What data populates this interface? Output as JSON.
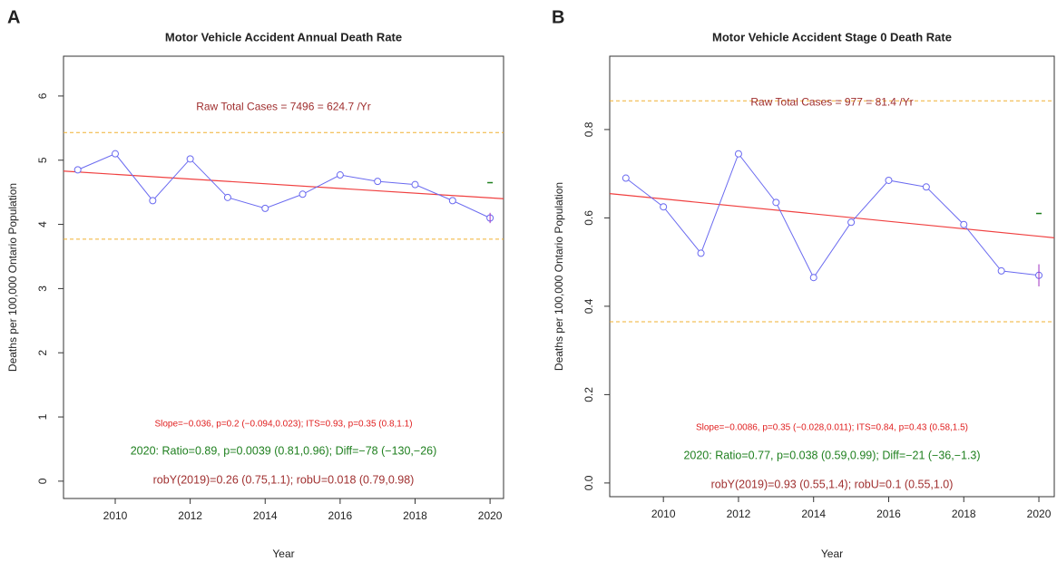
{
  "chart_data": [
    {
      "type": "line",
      "panel_label": "A",
      "title": "Motor Vehicle Accident Annual Death Rate",
      "xlabel": "Year",
      "ylabel": "Deaths per 100,000 Ontario Population",
      "x": [
        2009,
        2010,
        2011,
        2012,
        2013,
        2014,
        2015,
        2016,
        2017,
        2018,
        2019,
        2020
      ],
      "values": [
        4.85,
        5.1,
        4.37,
        5.02,
        4.42,
        4.25,
        4.47,
        4.77,
        4.67,
        4.62,
        4.37,
        4.1
      ],
      "color": "#6a6af0",
      "xlim": [
        2008.62,
        2020.36
      ],
      "ylim": [
        -0.27,
        6.62
      ],
      "xticks": [
        2010,
        2012,
        2014,
        2016,
        2018,
        2020
      ],
      "yticks": [
        0,
        1,
        2,
        3,
        4,
        5,
        6
      ],
      "upper_limit": 5.43,
      "lower_limit": 3.77,
      "trend": [
        4.83,
        4.4
      ],
      "trend_color": "#f04040",
      "expected_2020": 4.65,
      "last_error": 0.08,
      "annotations": {
        "top": "Raw Total Cases = 7496 = 624.7 /Yr",
        "slope": "Slope=−0.036, p=0.2 (−0.094,0.023);  ITS=0.93, p=0.35 (0.8,1.1)",
        "ratio": "2020:  Ratio=0.89, p=0.0039 (0.81,0.96);  Diff=−78 (−130,−26)",
        "rob": "robY(2019)=0.26 (0.75,1.1); robU=0.018 (0.79,0.98)"
      }
    },
    {
      "type": "line",
      "panel_label": "B",
      "title": "Motor Vehicle Accident Stage 0 Death Rate",
      "xlabel": "Year",
      "ylabel": "Deaths per 100,000 Ontario Population",
      "x": [
        2009,
        2010,
        2011,
        2012,
        2013,
        2014,
        2015,
        2016,
        2017,
        2018,
        2019,
        2020
      ],
      "values": [
        0.69,
        0.625,
        0.52,
        0.745,
        0.635,
        0.465,
        0.59,
        0.685,
        0.67,
        0.585,
        0.48,
        0.47
      ],
      "color": "#6a6af0",
      "xlim": [
        2008.57,
        2020.41
      ],
      "ylim": [
        -0.031,
        0.966
      ],
      "xticks": [
        2010,
        2012,
        2014,
        2016,
        2018,
        2020
      ],
      "yticks": [
        {
          "value": 0,
          "label": "0.0"
        },
        0.2,
        0.4,
        0.6,
        0.8
      ],
      "upper_limit": 0.865,
      "lower_limit": 0.365,
      "trend": [
        0.655,
        0.555
      ],
      "trend_color": "#f04040",
      "expected_2020": 0.61,
      "last_error": 0.025,
      "annotations": {
        "top": "Raw Total Cases = 977 = 81.4 /Yr",
        "slope": "Slope=−0.0086, p=0.35 (−0.028,0.011);  ITS=0.84, p=0.43 (0.58,1.5)",
        "ratio": "2020:  Ratio=0.77, p=0.038 (0.59,0.99);  Diff=−21 (−36,−1.3)",
        "rob": "robY(2019)=0.93 (0.55,1.4); robU=0.1 (0.55,1.0)"
      }
    }
  ]
}
